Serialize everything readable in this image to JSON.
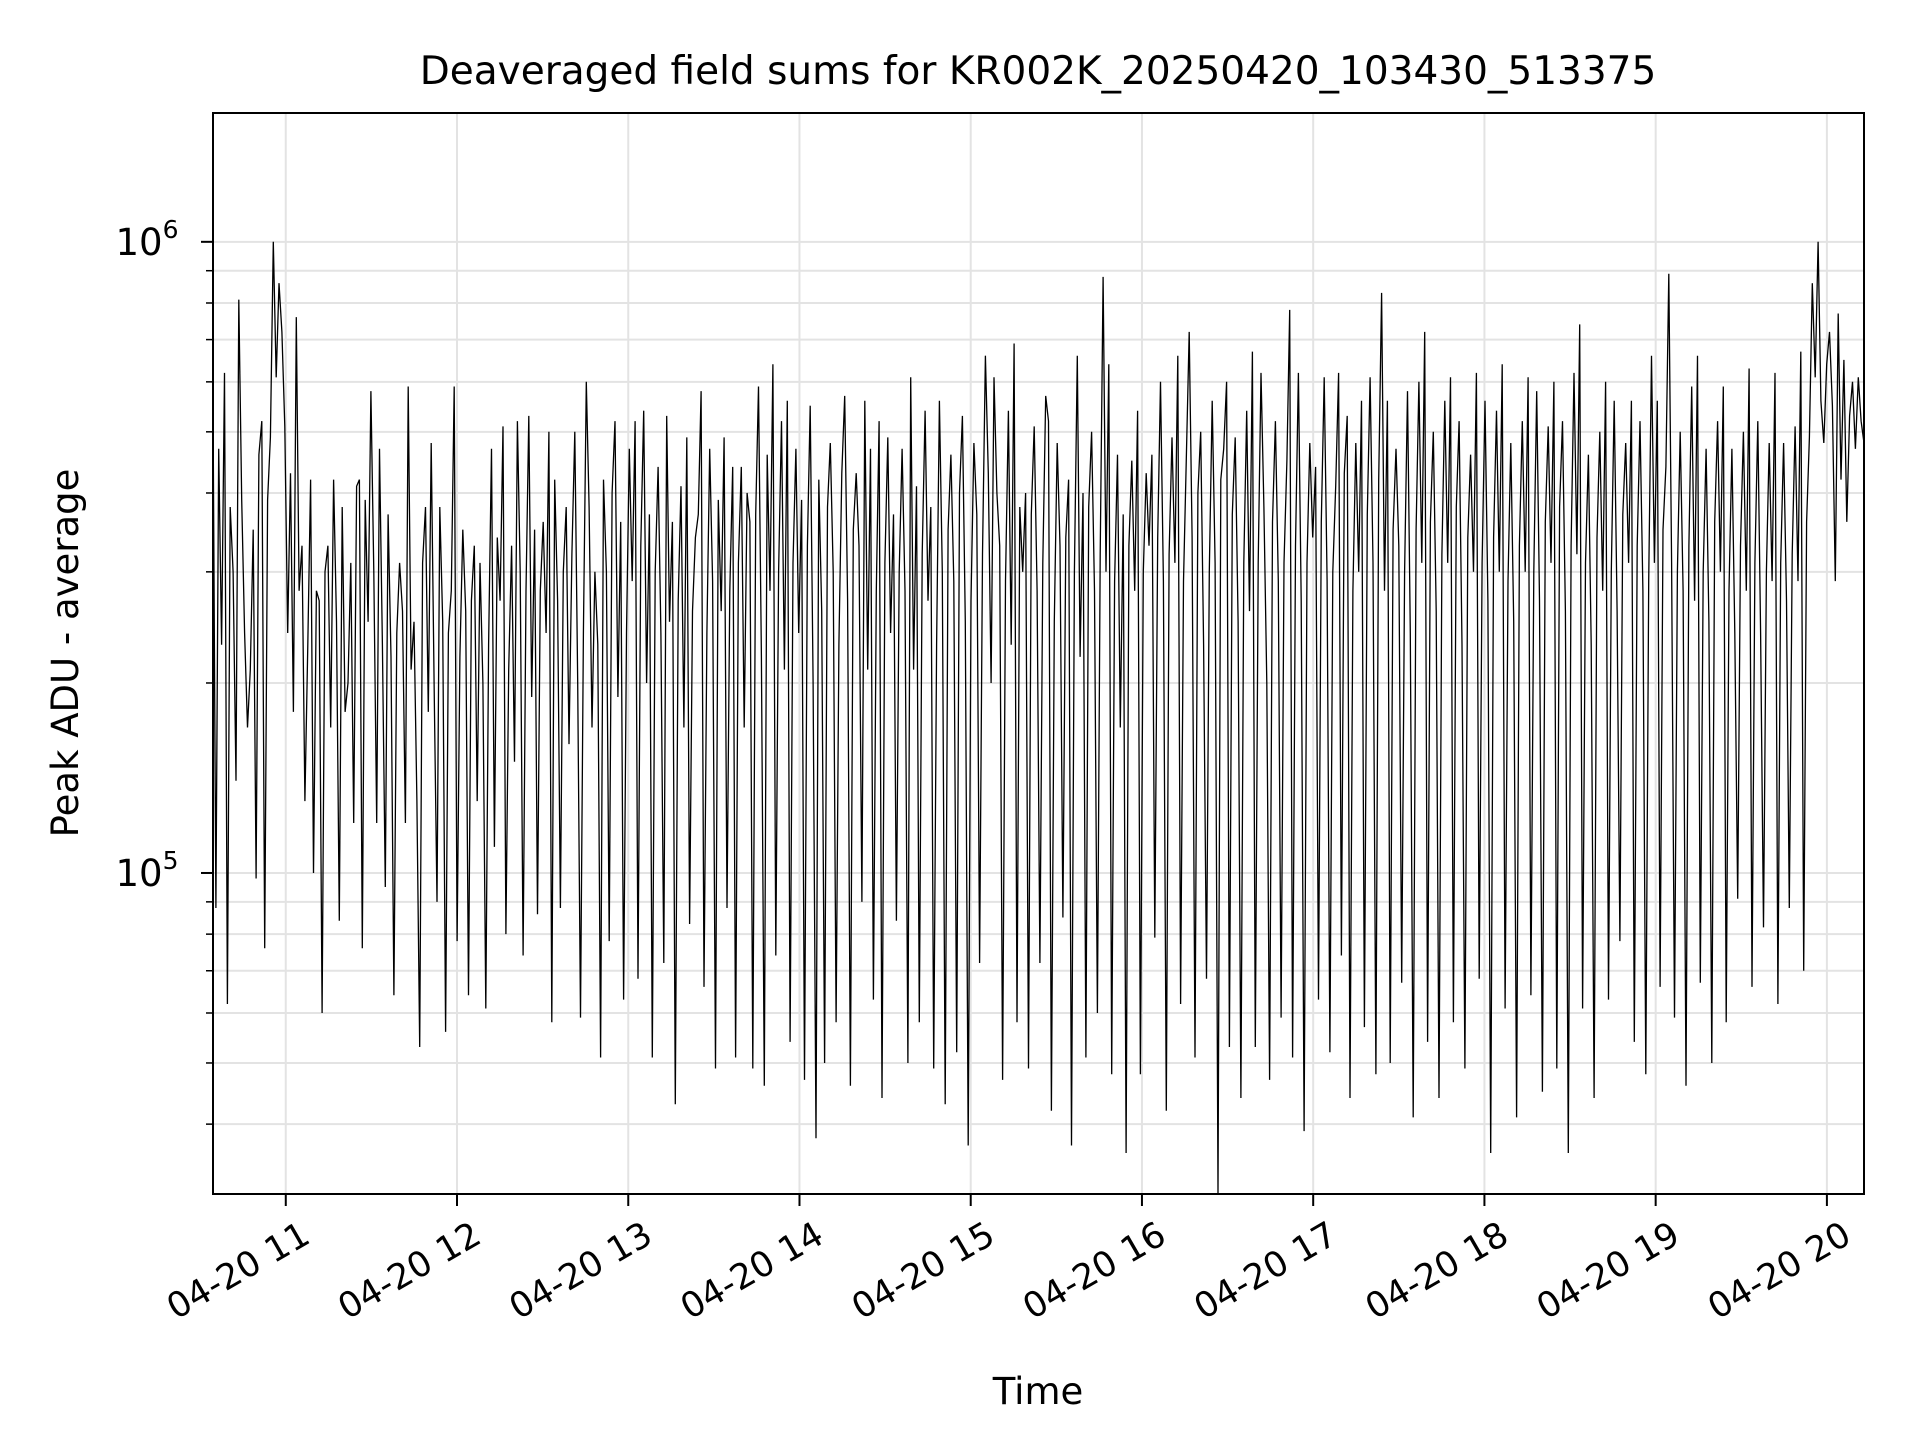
{
  "chart_data": {
    "type": "line",
    "title": "Deaveraged field sums for KR002K_20250420_103430_513375",
    "xlabel": "Time",
    "ylabel": "Peak ADU - average",
    "yscale": "log",
    "ylim": [
      31000,
      1600000
    ],
    "xlim": [
      "2025-04-20T10:34:30",
      "2025-04-20T20:13:00"
    ],
    "grid": true,
    "line_color": "#000000",
    "x_ticks": [
      {
        "t": "2025-04-20T11:00",
        "label": "04-20 11"
      },
      {
        "t": "2025-04-20T12:00",
        "label": "04-20 12"
      },
      {
        "t": "2025-04-20T13:00",
        "label": "04-20 13"
      },
      {
        "t": "2025-04-20T14:00",
        "label": "04-20 14"
      },
      {
        "t": "2025-04-20T15:00",
        "label": "04-20 15"
      },
      {
        "t": "2025-04-20T16:00",
        "label": "04-20 16"
      },
      {
        "t": "2025-04-20T17:00",
        "label": "04-20 17"
      },
      {
        "t": "2025-04-20T18:00",
        "label": "04-20 18"
      },
      {
        "t": "2025-04-20T19:00",
        "label": "04-20 19"
      },
      {
        "t": "2025-04-20T20:00",
        "label": "04-20 20"
      }
    ],
    "y_ticks": [
      {
        "value": 100000,
        "base": "10",
        "exp": "5"
      },
      {
        "value": 1000000,
        "base": "10",
        "exp": "6"
      }
    ],
    "series": [
      {
        "x_start": "2025-04-20T10:34:30",
        "x_end": "2025-04-20T20:13:00",
        "values": [
          560000,
          88000,
          470000,
          230000,
          620000,
          62000,
          380000,
          300000,
          140000,
          810000,
          390000,
          240000,
          170000,
          210000,
          350000,
          98000,
          460000,
          520000,
          76000,
          390000,
          490000,
          1000000,
          610000,
          860000,
          720000,
          510000,
          240000,
          430000,
          180000,
          760000,
          280000,
          330000,
          130000,
          230000,
          420000,
          100000,
          280000,
          270000,
          60000,
          300000,
          330000,
          170000,
          420000,
          250000,
          84000,
          380000,
          180000,
          200000,
          310000,
          120000,
          410000,
          420000,
          76000,
          390000,
          250000,
          580000,
          300000,
          120000,
          470000,
          230000,
          95000,
          370000,
          220000,
          64000,
          240000,
          310000,
          260000,
          120000,
          590000,
          210000,
          250000,
          130000,
          53000,
          310000,
          380000,
          180000,
          480000,
          200000,
          90000,
          380000,
          250000,
          56000,
          240000,
          280000,
          590000,
          78000,
          220000,
          350000,
          260000,
          64000,
          270000,
          330000,
          130000,
          310000,
          200000,
          61000,
          230000,
          470000,
          110000,
          340000,
          270000,
          510000,
          80000,
          210000,
          330000,
          150000,
          520000,
          300000,
          74000,
          280000,
          530000,
          190000,
          350000,
          86000,
          280000,
          360000,
          240000,
          500000,
          58000,
          420000,
          270000,
          88000,
          300000,
          380000,
          160000,
          320000,
          500000,
          200000,
          59000,
          240000,
          600000,
          380000,
          170000,
          300000,
          230000,
          51000,
          420000,
          300000,
          78000,
          400000,
          520000,
          190000,
          360000,
          63000,
          240000,
          470000,
          290000,
          520000,
          68000,
          330000,
          540000,
          200000,
          370000,
          51000,
          300000,
          440000,
          240000,
          72000,
          530000,
          250000,
          360000,
          43000,
          270000,
          410000,
          170000,
          490000,
          83000,
          260000,
          340000,
          370000,
          580000,
          66000,
          240000,
          470000,
          290000,
          49000,
          390000,
          260000,
          490000,
          88000,
          280000,
          440000,
          51000,
          310000,
          440000,
          170000,
          400000,
          360000,
          49000,
          370000,
          590000,
          220000,
          46000,
          460000,
          280000,
          640000,
          74000,
          300000,
          520000,
          210000,
          560000,
          54000,
          310000,
          470000,
          240000,
          390000,
          47000,
          330000,
          550000,
          200000,
          38000,
          420000,
          260000,
          50000,
          380000,
          480000,
          300000,
          58000,
          230000,
          430000,
          570000,
          270000,
          46000,
          350000,
          430000,
          330000,
          90000,
          560000,
          210000,
          470000,
          63000,
          280000,
          520000,
          44000,
          310000,
          490000,
          240000,
          370000,
          84000,
          300000,
          470000,
          280000,
          50000,
          610000,
          210000,
          410000,
          58000,
          320000,
          540000,
          270000,
          380000,
          49000,
          230000,
          560000,
          300000,
          43000,
          350000,
          460000,
          290000,
          52000,
          400000,
          530000,
          250000,
          37000,
          270000,
          480000,
          370000,
          72000,
          320000,
          660000,
          430000,
          200000,
          610000,
          400000,
          330000,
          47000,
          290000,
          540000,
          230000,
          690000,
          58000,
          380000,
          300000,
          400000,
          49000,
          370000,
          510000,
          280000,
          72000,
          310000,
          570000,
          520000,
          42000,
          250000,
          480000,
          330000,
          85000,
          340000,
          420000,
          37000,
          300000,
          660000,
          220000,
          400000,
          51000,
          380000,
          500000,
          280000,
          60000,
          320000,
          880000,
          300000,
          640000,
          48000,
          290000,
          460000,
          170000,
          370000,
          36000,
          330000,
          450000,
          280000,
          540000,
          48000,
          300000,
          430000,
          330000,
          460000,
          79000,
          340000,
          600000,
          290000,
          42000,
          320000,
          490000,
          310000,
          660000,
          62000,
          290000,
          460000,
          720000,
          340000,
          51000,
          400000,
          500000,
          230000,
          68000,
          300000,
          560000,
          310000,
          31000,
          420000,
          470000,
          600000,
          53000,
          370000,
          490000,
          250000,
          44000,
          310000,
          540000,
          260000,
          670000,
          53000,
          310000,
          620000,
          380000,
          200000,
          47000,
          360000,
          520000,
          290000,
          59000,
          310000,
          450000,
          780000,
          51000,
          330000,
          620000,
          270000,
          39000,
          310000,
          480000,
          340000,
          440000,
          63000,
          360000,
          610000,
          290000,
          52000,
          300000,
          410000,
          620000,
          74000,
          430000,
          530000,
          44000,
          280000,
          480000,
          300000,
          560000,
          57000,
          370000,
          610000,
          310000,
          48000,
          420000,
          830000,
          280000,
          560000,
          50000,
          350000,
          470000,
          330000,
          67000,
          300000,
          580000,
          240000,
          41000,
          350000,
          600000,
          310000,
          720000,
          54000,
          360000,
          500000,
          260000,
          44000,
          320000,
          560000,
          310000,
          610000,
          58000,
          380000,
          520000,
          230000,
          49000,
          340000,
          460000,
          300000,
          620000,
          68000,
          310000,
          560000,
          270000,
          36000,
          340000,
          540000,
          300000,
          640000,
          61000,
          290000,
          480000,
          250000,
          41000,
          330000,
          520000,
          300000,
          610000,
          64000,
          300000,
          580000,
          270000,
          45000,
          360000,
          510000,
          310000,
          600000,
          49000,
          380000,
          520000,
          260000,
          36000,
          330000,
          620000,
          320000,
          740000,
          61000,
          310000,
          460000,
          230000,
          44000,
          340000,
          500000,
          280000,
          600000,
          63000,
          300000,
          560000,
          260000,
          78000,
          370000,
          480000,
          310000,
          560000,
          54000,
          330000,
          520000,
          280000,
          48000,
          290000,
          660000,
          310000,
          560000,
          66000,
          350000,
          440000,
          890000,
          310000,
          59000,
          300000,
          500000,
          280000,
          46000,
          330000,
          590000,
          270000,
          660000,
          67000,
          300000,
          470000,
          250000,
          50000,
          360000,
          520000,
          300000,
          590000,
          58000,
          280000,
          470000,
          240000,
          91000,
          330000,
          500000,
          280000,
          630000,
          66000,
          310000,
          520000,
          240000,
          82000,
          300000,
          480000,
          290000,
          620000,
          62000,
          310000,
          480000,
          270000,
          88000,
          320000,
          510000,
          290000,
          670000,
          70000,
          360000,
          490000,
          860000,
          610000,
          1000000,
          560000,
          480000,
          640000,
          720000,
          550000,
          290000,
          770000,
          420000,
          650000,
          360000,
          530000,
          600000,
          470000,
          610000,
          520000,
          480000
        ]
      }
    ]
  }
}
